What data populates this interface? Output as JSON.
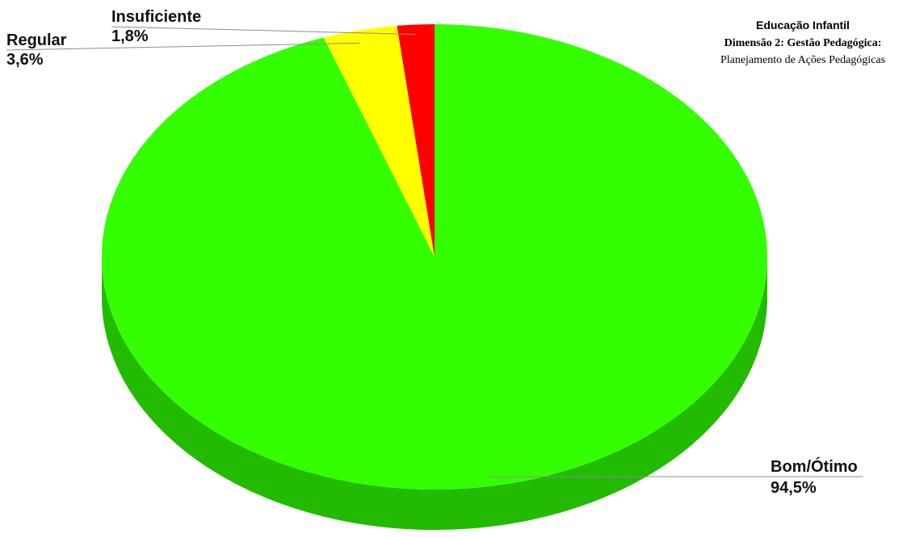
{
  "chart_data": {
    "type": "pie",
    "title": "Educação Infantil",
    "subtitle_line1": "Dimensão 2: Gestão Pedagógica:",
    "subtitle_line2": "Planejamento de Ações Pedagógicas",
    "slices": [
      {
        "label": "Bom/Ótimo",
        "value": 94.5,
        "value_label": "94,5%",
        "color": "#33ff00",
        "side_color": "#22bb00"
      },
      {
        "label": "Regular",
        "value": 3.6,
        "value_label": "3,6%",
        "color": "#ffff00",
        "side_color": "#c9c900"
      },
      {
        "label": "Insuficiente",
        "value": 1.8,
        "value_label": "1,8%",
        "color": "#ff0000",
        "side_color": "#bb0000"
      }
    ],
    "style": "3d-pie",
    "legend": "none"
  }
}
